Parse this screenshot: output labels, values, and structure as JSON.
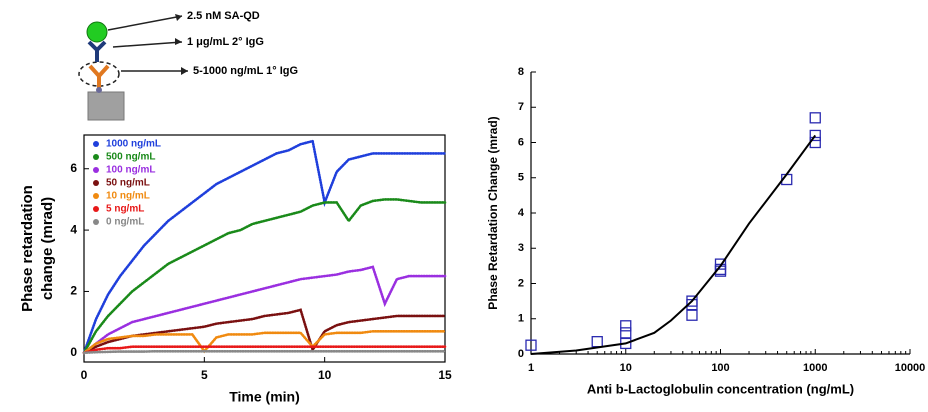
{
  "schematic": {
    "labels": [
      "2.5 nM SA-QD",
      "1 μg/mL 2° IgG",
      "5-1000 ng/mL 1° IgG"
    ]
  },
  "chart_data": [
    {
      "type": "line",
      "xlabel": "Time (min)",
      "ylabel": [
        "Phase retardation",
        "change (mrad)"
      ],
      "xlim": [
        0,
        15
      ],
      "xticks": [
        0,
        5,
        10,
        15
      ],
      "ylim": [
        -0.3,
        7.1
      ],
      "yticks": [
        0,
        2,
        4,
        6
      ],
      "legend": "upper left",
      "x": [
        0,
        0.5,
        1,
        1.5,
        2,
        2.5,
        3,
        3.5,
        4,
        4.5,
        5,
        5.5,
        6,
        6.5,
        7,
        7.5,
        8,
        8.5,
        9,
        9.5,
        10,
        10.5,
        11,
        11.5,
        12,
        12.5,
        13,
        13.5,
        14,
        14.5,
        15
      ],
      "series": [
        {
          "name": "1000 ng/mL",
          "color": "#1f3fdc",
          "values": [
            0,
            1.1,
            1.9,
            2.5,
            3.0,
            3.5,
            3.9,
            4.3,
            4.6,
            4.9,
            5.2,
            5.5,
            5.7,
            5.9,
            6.1,
            6.3,
            6.5,
            6.6,
            6.8,
            6.9,
            4.9,
            5.9,
            6.3,
            6.4,
            6.5,
            6.5,
            6.5,
            6.5,
            6.5,
            6.5,
            6.5
          ]
        },
        {
          "name": "500 ng/mL",
          "color": "#1a8a1a",
          "values": [
            0,
            0.7,
            1.2,
            1.6,
            2.0,
            2.3,
            2.6,
            2.9,
            3.1,
            3.3,
            3.5,
            3.7,
            3.9,
            4.0,
            4.2,
            4.3,
            4.4,
            4.5,
            4.6,
            4.8,
            4.9,
            4.9,
            4.3,
            4.8,
            4.95,
            5.0,
            5.0,
            4.95,
            4.9,
            4.9,
            4.9
          ]
        },
        {
          "name": "100 ng/mL",
          "color": "#9a2fe0",
          "values": [
            0,
            0.3,
            0.6,
            0.8,
            1.0,
            1.1,
            1.2,
            1.3,
            1.4,
            1.5,
            1.6,
            1.7,
            1.8,
            1.9,
            2.0,
            2.1,
            2.2,
            2.3,
            2.4,
            2.45,
            2.5,
            2.55,
            2.65,
            2.7,
            2.8,
            1.6,
            2.4,
            2.5,
            2.5,
            2.5,
            2.5
          ]
        },
        {
          "name": "50 ng/mL",
          "color": "#7a1010",
          "values": [
            0,
            0.2,
            0.35,
            0.45,
            0.55,
            0.6,
            0.65,
            0.7,
            0.75,
            0.8,
            0.85,
            0.95,
            1.0,
            1.05,
            1.1,
            1.2,
            1.25,
            1.3,
            1.4,
            0.1,
            0.7,
            0.9,
            1.0,
            1.05,
            1.1,
            1.15,
            1.2,
            1.2,
            1.2,
            1.2,
            1.2
          ]
        },
        {
          "name": "10 ng/mL",
          "color": "#f08a10",
          "values": [
            0,
            0.3,
            0.45,
            0.5,
            0.55,
            0.55,
            0.6,
            0.6,
            0.6,
            0.6,
            0.05,
            0.5,
            0.6,
            0.6,
            0.6,
            0.65,
            0.65,
            0.65,
            0.65,
            0.2,
            0.6,
            0.65,
            0.65,
            0.65,
            0.7,
            0.7,
            0.7,
            0.7,
            0.7,
            0.7,
            0.7
          ]
        },
        {
          "name": "5 ng/mL",
          "color": "#e81818",
          "values": [
            0,
            0.1,
            0.15,
            0.15,
            0.2,
            0.2,
            0.2,
            0.2,
            0.2,
            0.2,
            0.2,
            0.2,
            0.2,
            0.2,
            0.2,
            0.2,
            0.2,
            0.2,
            0.2,
            0.2,
            0.2,
            0.2,
            0.2,
            0.2,
            0.2,
            0.2,
            0.2,
            0.2,
            0.2,
            0.2,
            0.2
          ]
        },
        {
          "name": "0 ng/mL",
          "color": "#888888",
          "values": [
            0,
            0.02,
            0.03,
            0.04,
            0.04,
            0.04,
            0.05,
            0.05,
            0.05,
            0.05,
            0.05,
            0.05,
            0.05,
            0.05,
            0.05,
            0.05,
            0.05,
            0.05,
            0.05,
            0.05,
            0.05,
            0.05,
            0.05,
            0.05,
            0.05,
            0.05,
            0.05,
            0.05,
            0.05,
            0.05,
            0.05
          ]
        }
      ]
    },
    {
      "type": "scatter",
      "xlabel": "Anti b-Lactoglobulin concentration (ng/mL)",
      "ylabel": [
        "Phase Retardation Change (mrad)"
      ],
      "xscale": "log",
      "xlim": [
        1,
        10000
      ],
      "xticks": [
        1,
        10,
        100,
        1000,
        10000
      ],
      "ylim": [
        0,
        8
      ],
      "yticks": [
        0,
        1,
        2,
        3,
        4,
        5,
        6,
        7,
        8
      ],
      "series": [
        {
          "color": "#2a2ab0",
          "marker": "square",
          "x": [
            1,
            5,
            10,
            10,
            10,
            50,
            50,
            50,
            100,
            100,
            100,
            500,
            1000,
            1000,
            1000
          ],
          "values": [
            0.25,
            0.35,
            0.8,
            0.6,
            0.3,
            1.5,
            1.4,
            1.1,
            2.55,
            2.4,
            2.35,
            4.95,
            6.7,
            6.2,
            6.0
          ]
        },
        {
          "color": "#000000",
          "marker": "line",
          "x": [
            1,
            3,
            10,
            20,
            30,
            50,
            100,
            200,
            500,
            1000
          ],
          "values": [
            0,
            0.1,
            0.3,
            0.6,
            0.95,
            1.5,
            2.5,
            3.7,
            5.1,
            6.2
          ]
        }
      ]
    }
  ]
}
